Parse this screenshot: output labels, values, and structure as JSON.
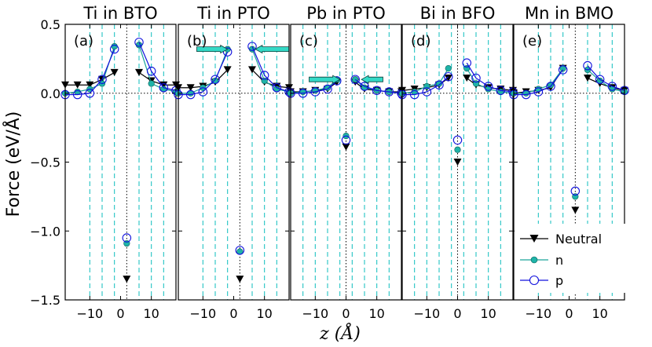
{
  "figure": {
    "ylabel": "Force (eV/Å)",
    "xlabel": "z (Å)"
  },
  "legend": [
    {
      "key": "neutral",
      "label": "Neutral"
    },
    {
      "key": "n",
      "label": "n"
    },
    {
      "key": "p",
      "label": "p"
    }
  ],
  "colors": {
    "neutral": "#000000",
    "n": "#1aa39a",
    "n_fill": "#1fb3a8",
    "p": "#1111dd",
    "dash": "#22c3c3",
    "arrow_fill": "#33d9c6"
  },
  "chart_data": [
    {
      "type": "line",
      "title": "Ti in BTO",
      "label": "(a)",
      "xlim": [
        -18,
        18
      ],
      "ylim": [
        -1.5,
        0.5
      ],
      "xticks": [
        -10,
        0,
        10
      ],
      "yticks": [
        0.5,
        0.0,
        -0.5,
        -1.0,
        -1.5
      ],
      "dashed_x": [
        -10,
        -6,
        -2,
        6,
        10,
        14
      ],
      "arrows": [],
      "series": [
        {
          "name": "Neutral",
          "segments": [
            [
              [
                -18,
                0.06
              ],
              [
                -14,
                0.06
              ],
              [
                -10,
                0.06
              ],
              [
                -6,
                0.1
              ],
              [
                -2,
                0.15
              ]
            ],
            [
              [
                6,
                0.15
              ],
              [
                10,
                0.09
              ],
              [
                14,
                0.06
              ],
              [
                18,
                0.06
              ]
            ]
          ],
          "center": [
            [
              2,
              -1.35
            ]
          ]
        },
        {
          "name": "n",
          "segments": [
            [
              [
                -18,
                0.0
              ],
              [
                -14,
                0.01
              ],
              [
                -10,
                0.03
              ],
              [
                -6,
                0.07
              ],
              [
                -2,
                0.34
              ]
            ],
            [
              [
                6,
                0.35
              ],
              [
                10,
                0.07
              ],
              [
                14,
                0.03
              ],
              [
                18,
                0.01
              ]
            ]
          ],
          "center": [
            [
              2,
              -1.09
            ]
          ]
        },
        {
          "name": "p",
          "segments": [
            [
              [
                -18,
                -0.01
              ],
              [
                -14,
                -0.01
              ],
              [
                -10,
                0.0
              ],
              [
                -6,
                0.1
              ],
              [
                -2,
                0.32
              ]
            ],
            [
              [
                6,
                0.37
              ],
              [
                10,
                0.16
              ],
              [
                14,
                0.04
              ],
              [
                18,
                0.02
              ]
            ]
          ],
          "center": [
            [
              2,
              -1.05
            ]
          ]
        }
      ]
    },
    {
      "type": "line",
      "title": "Ti in PTO",
      "label": "(b)",
      "xlim": [
        -18,
        18
      ],
      "ylim": [
        -1.5,
        0.5
      ],
      "xticks": [
        -10,
        0,
        10
      ],
      "yticks": [
        0.5,
        0.0,
        -0.5,
        -1.0,
        -1.5
      ],
      "dashed_x": [
        -10,
        -6,
        -2,
        6,
        10,
        14
      ],
      "arrows": [
        {
          "from": -12,
          "to": -2,
          "y": 0.32,
          "dir": "right"
        },
        {
          "from": 18,
          "to": 7,
          "y": 0.32,
          "dir": "left"
        }
      ],
      "series": [
        {
          "name": "Neutral",
          "segments": [
            [
              [
                -18,
                0.04
              ],
              [
                -14,
                0.04
              ],
              [
                -10,
                0.05
              ],
              [
                -6,
                0.08
              ],
              [
                -2,
                0.17
              ]
            ],
            [
              [
                6,
                0.17
              ],
              [
                10,
                0.08
              ],
              [
                14,
                0.05
              ],
              [
                18,
                0.04
              ]
            ]
          ],
          "center": [
            [
              2,
              -1.35
            ]
          ]
        },
        {
          "name": "n",
          "segments": [
            [
              [
                -18,
                0.0
              ],
              [
                -14,
                0.0
              ],
              [
                -10,
                0.04
              ],
              [
                -6,
                0.09
              ],
              [
                -2,
                0.32
              ]
            ],
            [
              [
                6,
                0.32
              ],
              [
                10,
                0.09
              ],
              [
                14,
                0.03
              ],
              [
                18,
                0.01
              ]
            ]
          ],
          "center": [
            [
              2,
              -1.15
            ]
          ]
        },
        {
          "name": "p",
          "segments": [
            [
              [
                -18,
                -0.01
              ],
              [
                -14,
                -0.01
              ],
              [
                -10,
                0.01
              ],
              [
                -6,
                0.1
              ],
              [
                -2,
                0.3
              ]
            ],
            [
              [
                6,
                0.34
              ],
              [
                10,
                0.13
              ],
              [
                14,
                0.04
              ],
              [
                18,
                0.01
              ]
            ]
          ],
          "center": [
            [
              2,
              -1.14
            ]
          ]
        }
      ]
    },
    {
      "type": "line",
      "title": "Pb in PTO",
      "label": "(c)",
      "xlim": [
        -18,
        18
      ],
      "ylim": [
        -1.5,
        0.5
      ],
      "xticks": [
        -10,
        0,
        10
      ],
      "yticks": [
        0.5,
        0.0,
        -0.5,
        -1.0,
        -1.5
      ],
      "dashed_x": [
        -14,
        -10,
        -6,
        -2,
        2,
        6,
        10,
        14
      ],
      "arrows": [
        {
          "from": -12,
          "to": -2,
          "y": 0.1,
          "dir": "right"
        },
        {
          "from": 12,
          "to": 5,
          "y": 0.1,
          "dir": "left"
        }
      ],
      "series": [
        {
          "name": "Neutral",
          "segments": [
            [
              [
                -18,
                0.01
              ],
              [
                -14,
                0.01
              ],
              [
                -10,
                0.02
              ],
              [
                -6,
                0.03
              ],
              [
                -3,
                0.08
              ]
            ],
            [
              [
                3,
                0.08
              ],
              [
                6,
                0.03
              ],
              [
                10,
                0.02
              ],
              [
                14,
                0.01
              ],
              [
                18,
                0.01
              ]
            ]
          ],
          "center": [
            [
              0,
              -0.39
            ]
          ]
        },
        {
          "name": "n",
          "segments": [
            [
              [
                -18,
                0.0
              ],
              [
                -14,
                0.01
              ],
              [
                -10,
                0.02
              ],
              [
                -6,
                0.04
              ],
              [
                -3,
                0.1
              ]
            ],
            [
              [
                3,
                0.1
              ],
              [
                6,
                0.04
              ],
              [
                10,
                0.02
              ],
              [
                14,
                0.01
              ],
              [
                18,
                0.0
              ]
            ]
          ],
          "center": [
            [
              0,
              -0.31
            ]
          ]
        },
        {
          "name": "p",
          "segments": [
            [
              [
                -18,
                0.0
              ],
              [
                -14,
                0.0
              ],
              [
                -10,
                0.01
              ],
              [
                -6,
                0.03
              ],
              [
                -3,
                0.09
              ]
            ],
            [
              [
                3,
                0.1
              ],
              [
                6,
                0.05
              ],
              [
                10,
                0.02
              ],
              [
                14,
                0.01
              ],
              [
                18,
                0.0
              ]
            ]
          ],
          "center": [
            [
              0,
              -0.34
            ]
          ]
        }
      ]
    },
    {
      "type": "line",
      "title": "Bi in BFO",
      "label": "(d)",
      "xlim": [
        -18,
        18
      ],
      "ylim": [
        -1.5,
        0.5
      ],
      "xticks": [
        -10,
        0,
        10
      ],
      "yticks": [
        0.5,
        0.0,
        -0.5,
        -1.0,
        -1.5
      ],
      "dashed_x": [
        -14,
        -10,
        -6,
        -2,
        2,
        6,
        10,
        14
      ],
      "arrows": [],
      "series": [
        {
          "name": "Neutral",
          "segments": [
            [
              [
                -18,
                0.02
              ],
              [
                -14,
                0.03
              ],
              [
                -10,
                0.04
              ],
              [
                -6,
                0.06
              ],
              [
                -3,
                0.11
              ]
            ],
            [
              [
                3,
                0.11
              ],
              [
                6,
                0.06
              ],
              [
                10,
                0.04
              ],
              [
                14,
                0.03
              ],
              [
                18,
                0.02
              ]
            ]
          ],
          "center": [
            [
              0,
              -0.5
            ]
          ]
        },
        {
          "name": "n",
          "segments": [
            [
              [
                -18,
                0.0
              ],
              [
                -14,
                0.01
              ],
              [
                -10,
                0.05
              ],
              [
                -6,
                0.07
              ],
              [
                -3,
                0.18
              ]
            ],
            [
              [
                3,
                0.18
              ],
              [
                6,
                0.07
              ],
              [
                10,
                0.03
              ],
              [
                14,
                0.01
              ],
              [
                18,
                0.0
              ]
            ]
          ],
          "center": [
            [
              0,
              -0.41
            ]
          ]
        },
        {
          "name": "p",
          "segments": [
            [
              [
                -18,
                -0.01
              ],
              [
                -14,
                -0.01
              ],
              [
                -10,
                0.01
              ],
              [
                -6,
                0.06
              ],
              [
                -3,
                0.12
              ]
            ],
            [
              [
                3,
                0.22
              ],
              [
                6,
                0.11
              ],
              [
                10,
                0.05
              ],
              [
                14,
                0.02
              ],
              [
                18,
                0.01
              ]
            ]
          ],
          "center": [
            [
              0,
              -0.34
            ]
          ]
        }
      ]
    },
    {
      "type": "line",
      "title": "Mn in BMO",
      "label": "(e)",
      "xlim": [
        -18,
        18
      ],
      "ylim": [
        -1.5,
        0.5
      ],
      "xticks": [
        -10,
        0,
        10
      ],
      "yticks": [
        0.5,
        0.0,
        -0.5,
        -1.0,
        -1.5
      ],
      "dashed_x": [
        -10,
        -6,
        -2,
        6,
        10,
        14
      ],
      "arrows": [],
      "series": [
        {
          "name": "Neutral",
          "segments": [
            [
              [
                -18,
                0.0
              ],
              [
                -14,
                0.01
              ],
              [
                -10,
                0.02
              ],
              [
                -6,
                0.04
              ],
              [
                -2,
                0.18
              ]
            ],
            [
              [
                6,
                0.11
              ],
              [
                10,
                0.07
              ],
              [
                14,
                0.04
              ],
              [
                18,
                0.02
              ]
            ]
          ],
          "center": [
            [
              2,
              -0.85
            ]
          ]
        },
        {
          "name": "n",
          "segments": [
            [
              [
                -18,
                0.0
              ],
              [
                -14,
                0.0
              ],
              [
                -10,
                0.03
              ],
              [
                -6,
                0.06
              ],
              [
                -2,
                0.18
              ]
            ],
            [
              [
                6,
                0.17
              ],
              [
                10,
                0.09
              ],
              [
                14,
                0.03
              ],
              [
                18,
                0.01
              ]
            ]
          ],
          "center": [
            [
              2,
              -0.75
            ]
          ]
        },
        {
          "name": "p",
          "segments": [
            [
              [
                -18,
                -0.01
              ],
              [
                -14,
                -0.01
              ],
              [
                -10,
                0.01
              ],
              [
                -6,
                0.05
              ],
              [
                -2,
                0.17
              ]
            ],
            [
              [
                6,
                0.2
              ],
              [
                10,
                0.1
              ],
              [
                14,
                0.05
              ],
              [
                18,
                0.02
              ]
            ]
          ],
          "center": [
            [
              2,
              -0.71
            ]
          ]
        }
      ]
    }
  ]
}
